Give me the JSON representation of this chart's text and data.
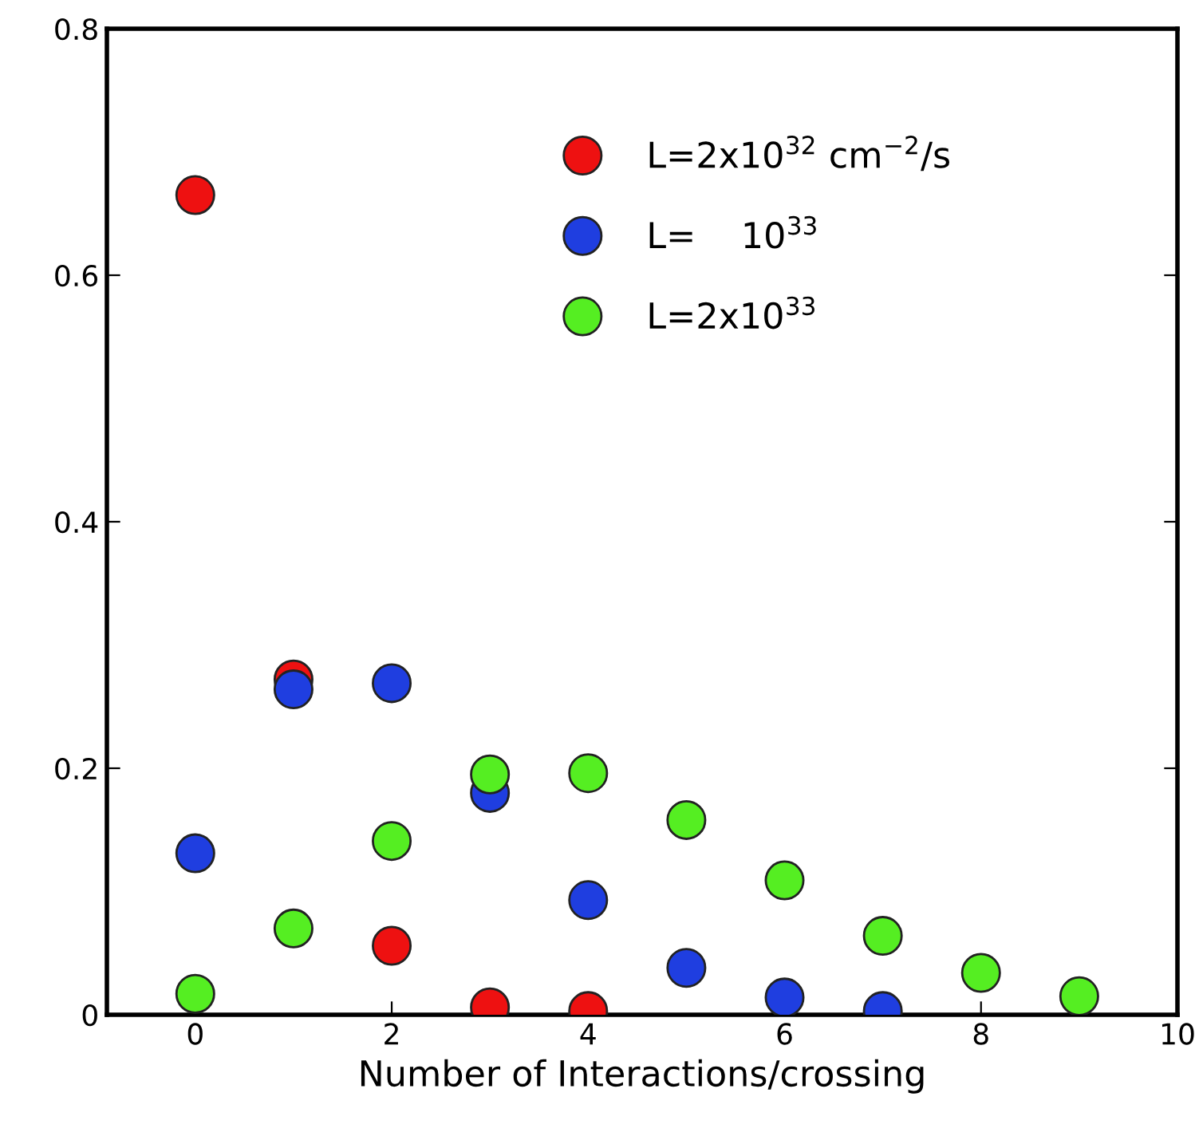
{
  "chart_data": {
    "type": "scatter",
    "xlabel": "Number of Interactions/crossing",
    "x": [
      0,
      1,
      2,
      3,
      4,
      5,
      6,
      7,
      8,
      9
    ],
    "series": [
      {
        "name": "L=2x10$^{32}$ cm$^{−2}$/s",
        "color": "#ee1111",
        "values": [
          0.665,
          0.272,
          0.056,
          0.006,
          0.003,
          null,
          null,
          null,
          null,
          null
        ]
      },
      {
        "name": "L=    10$^{33}$",
        "color": "#1f3ee0",
        "values": [
          0.131,
          0.264,
          0.269,
          0.18,
          0.093,
          0.038,
          0.014,
          0.003,
          null,
          null
        ]
      },
      {
        "name": "L=2x10$^{33}$",
        "color": "#55ee22",
        "values": [
          0.017,
          0.07,
          0.141,
          0.195,
          0.196,
          0.158,
          0.109,
          0.064,
          0.034,
          0.015
        ]
      }
    ],
    "xlim": [
      -0.9,
      10
    ],
    "xticks": [
      0,
      2,
      4,
      6,
      8,
      10
    ],
    "ylim": [
      0,
      0.8
    ],
    "yticks": [
      0,
      0.2,
      0.4,
      0.6,
      0.8
    ],
    "marker": "circle",
    "legend": "top",
    "grid": false
  }
}
